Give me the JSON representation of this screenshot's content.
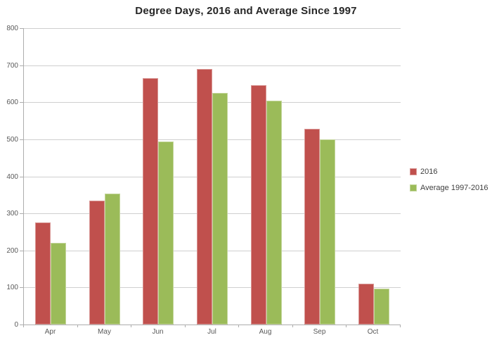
{
  "chart_data": {
    "type": "bar",
    "title": "Degree Days, 2016 and Average Since 1997",
    "categories": [
      "Apr",
      "May",
      "Jun",
      "Jul",
      "Aug",
      "Sep",
      "Oct"
    ],
    "series": [
      {
        "name": "2016",
        "color": "#C0504D",
        "border_color": "#D99795",
        "values": [
          275,
          334,
          665,
          690,
          647,
          528,
          111
        ]
      },
      {
        "name": "Average 1997-2016",
        "color": "#9BBB59",
        "border_color": "#C3D69B",
        "values": [
          220,
          353,
          495,
          625,
          605,
          500,
          97
        ]
      }
    ],
    "xlabel": "",
    "ylabel": "",
    "ylim": [
      0,
      800
    ],
    "y_tick_step": 100,
    "y_tick_labels": [
      "0",
      "100",
      "200",
      "300",
      "400",
      "500",
      "600",
      "700",
      "800"
    ],
    "grid": true,
    "legend_position": "right"
  },
  "colors": {
    "background": "#FFFFFF",
    "gridline": "#CFCFCF",
    "axis_line": "#ADADAD",
    "title_text": "#262626",
    "axis_text": "#595959",
    "legend_text": "#404040"
  }
}
